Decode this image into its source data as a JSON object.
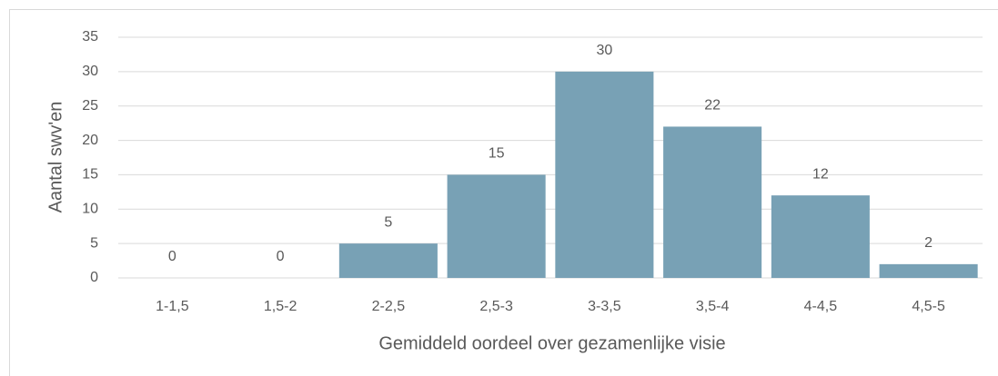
{
  "chart_data": {
    "type": "bar",
    "xlabel": "Gemiddeld oordeel over gezamenlijke visie",
    "ylabel": "Aantal swv'en",
    "categories": [
      "1-1,5",
      "1,5-2",
      "2-2,5",
      "2,5-3",
      "3-3,5",
      "3,5-4",
      "4-4,5",
      "4,5-5"
    ],
    "values": [
      0,
      0,
      5,
      15,
      30,
      22,
      12,
      2
    ],
    "color": "#78a1b5",
    "ylim": [
      0,
      35
    ],
    "yticks": [
      0,
      5,
      10,
      15,
      20,
      25,
      30,
      35
    ],
    "grid": true
  }
}
